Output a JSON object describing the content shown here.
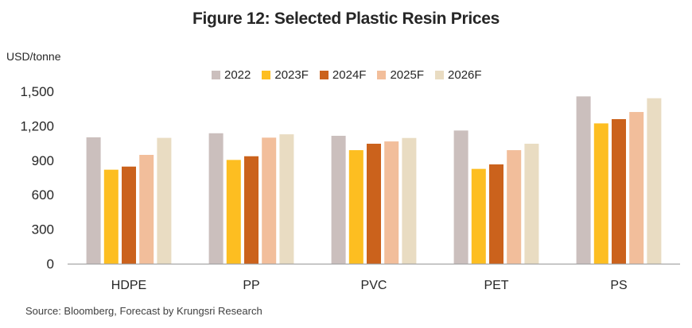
{
  "chart_data": {
    "type": "bar",
    "title": "Figure 12: Selected Plastic Resin Prices",
    "ylabel": "USD/tonne",
    "xlabel": "",
    "ylim": [
      0,
      1500
    ],
    "yticks": [
      0,
      300,
      600,
      900,
      1200,
      1500
    ],
    "ytick_labels": [
      "0",
      "300",
      "600",
      "900",
      "1,200",
      "1,500"
    ],
    "grid": false,
    "legend_position": "top-center",
    "categories": [
      "HDPE",
      "PP",
      "PVC",
      "PET",
      "PS"
    ],
    "series": [
      {
        "name": "2022",
        "color": "#CBBFBD",
        "values": [
          1100,
          1135,
          1113,
          1159,
          1456
        ]
      },
      {
        "name": "2023F",
        "color": "#FDBE21",
        "values": [
          818,
          903,
          988,
          825,
          1221
        ]
      },
      {
        "name": "2024F",
        "color": "#CB621C",
        "values": [
          845,
          935,
          1044,
          864,
          1258
        ]
      },
      {
        "name": "2025F",
        "color": "#F2BE9B",
        "values": [
          947,
          1097,
          1064,
          988,
          1320
        ]
      },
      {
        "name": "2026F",
        "color": "#E9DCC2",
        "values": [
          1095,
          1126,
          1094,
          1044,
          1440
        ]
      }
    ],
    "source": "Source: Bloomberg, Forecast by Krungsri Research"
  }
}
